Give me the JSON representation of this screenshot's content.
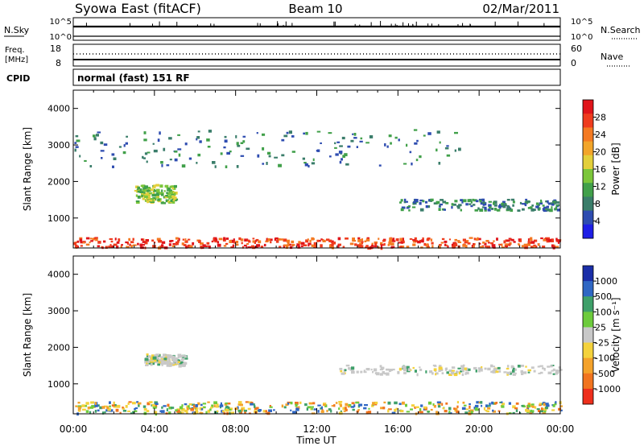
{
  "header": {
    "station": "Syowa East (fitACF)",
    "beam": "Beam 10",
    "date": "02/Mar/2011"
  },
  "noise_panel": {
    "left_label": "N.Sky",
    "right_label": "N.Search",
    "left_ticks": [
      "10^5",
      "10^0"
    ],
    "right_ticks": [
      "10^5",
      "10^0"
    ]
  },
  "freq_panel": {
    "left_label_1": "Freq.",
    "left_label_2": "[MHz]",
    "right_label": "Nave",
    "left_ticks": [
      "18",
      "8"
    ],
    "right_ticks": [
      "60",
      "0"
    ],
    "cpid_label": "CPID",
    "cpid_value": "normal (fast) 151 RF"
  },
  "chart_data": [
    {
      "type": "heatmap",
      "title": "",
      "xlabel": "Time UT",
      "ylabel": "Slant Range [km]",
      "x_ticks": [
        "00:00",
        "04:00",
        "08:00",
        "12:00",
        "16:00",
        "20:00",
        "00:00"
      ],
      "xlim_hours": [
        0,
        24
      ],
      "y_ticks": [
        1000,
        2000,
        3000,
        4000
      ],
      "ylim": [
        180,
        4500
      ],
      "colorbar": {
        "label": "Power [dB]",
        "ticks": [
          "4",
          "8",
          "12",
          "16",
          "20",
          "24",
          "28"
        ],
        "colors": [
          "#1e1ee6",
          "#2e4cb0",
          "#3a7d6a",
          "#41a04a",
          "#7cc63a",
          "#e3cf3a",
          "#f2a52a",
          "#f47a22",
          "#ef3c1e",
          "#e0141a"
        ]
      },
      "features": [
        {
          "name": "near-range strong echoes",
          "range_km": [
            180,
            450
          ],
          "hours": [
            0,
            24
          ],
          "level_db": 26
        },
        {
          "name": "evening band 1300 km",
          "range_km": [
            1200,
            1500
          ],
          "hours": [
            16,
            24
          ],
          "level_db": 8
        },
        {
          "name": "morning patches",
          "range_km": [
            1400,
            1900
          ],
          "hours": [
            3,
            5
          ],
          "level_db": 12
        },
        {
          "name": "far-range sporadic",
          "range_km": [
            2400,
            3400
          ],
          "hours": [
            0,
            19
          ],
          "level_db": 6
        }
      ]
    },
    {
      "type": "heatmap",
      "title": "",
      "xlabel": "Time UT",
      "ylabel": "Slant Range [km]",
      "x_ticks": [
        "00:00",
        "04:00",
        "08:00",
        "12:00",
        "16:00",
        "20:00",
        "00:00"
      ],
      "xlim_hours": [
        0,
        24
      ],
      "y_ticks": [
        1000,
        2000,
        3000,
        4000
      ],
      "ylim": [
        180,
        4500
      ],
      "colorbar": {
        "label": "Velocity [m s⁻¹]",
        "ticks": [
          "1000",
          "500",
          "100",
          "25",
          "-25",
          "-100",
          "-500",
          "-1000"
        ],
        "colors": [
          "#1a2ea8",
          "#2f67c4",
          "#3fa06a",
          "#6dcb3c",
          "#c8c8c8",
          "#f4d23c",
          "#f4a22a",
          "#f1741f",
          "#ee2f1c"
        ]
      },
      "features": [
        {
          "name": "near-range flows",
          "range_km": [
            180,
            500
          ],
          "hours": [
            0,
            24
          ],
          "velocity_ms": -100
        },
        {
          "name": "evening ground scatter band",
          "range_km": [
            1250,
            1500
          ],
          "hours": [
            13,
            24
          ],
          "velocity_ms": 0
        },
        {
          "name": "morning ground scatter",
          "range_km": [
            1500,
            1800
          ],
          "hours": [
            3.5,
            5.5
          ],
          "velocity_ms": 0
        }
      ]
    }
  ]
}
